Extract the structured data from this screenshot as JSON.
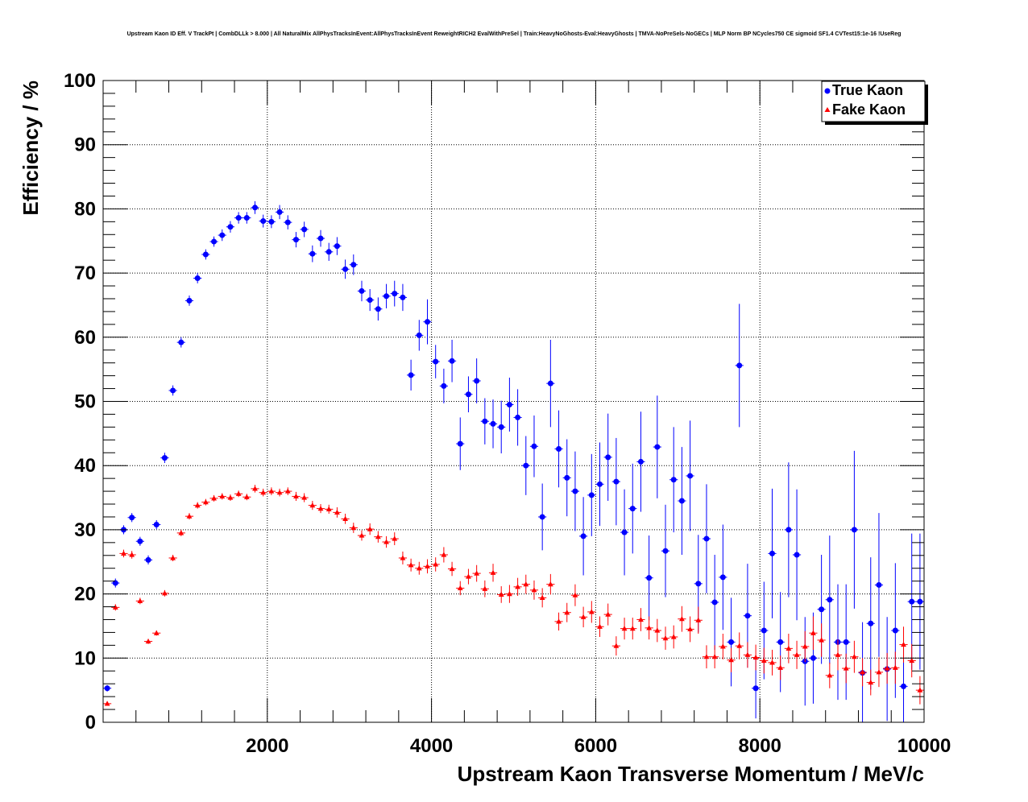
{
  "chart_data": {
    "type": "scatter",
    "title": "Upstream Kaon ID Eff. V TrackPt | CombDLLk > 8.000 | All NaturalMix AllPhysTracksInEvent:AllPhysTracksInEvent ReweightRICH2 EvalWithPreSel | Train:HeavyNoGhosts-Eval:HeavyGhosts | TMVA-NoPreSels-NoGECs | MLP Norm BP NCycles750 CE sigmoid SF1.4 CVTest15:1e-16 !UseReg",
    "xlabel": "Upstream Kaon Transverse Momentum / MeV/c",
    "ylabel": "Efficiency / %",
    "xlim": [
      0,
      10000
    ],
    "ylim": [
      0,
      100
    ],
    "x_tick_labels": [
      "2000",
      "4000",
      "6000",
      "8000",
      "10000"
    ],
    "y_tick_labels": [
      "0",
      "10",
      "20",
      "30",
      "40",
      "50",
      "60",
      "70",
      "80",
      "90",
      "100"
    ],
    "grid": true,
    "legend_position": "top-right",
    "series": [
      {
        "name": "True Kaon",
        "marker": "circle",
        "color": "#0000ff",
        "x": [
          50,
          150,
          250,
          350,
          450,
          550,
          650,
          750,
          850,
          950,
          1050,
          1150,
          1250,
          1350,
          1450,
          1550,
          1650,
          1750,
          1850,
          1950,
          2050,
          2150,
          2250,
          2350,
          2450,
          2550,
          2650,
          2750,
          2850,
          2950,
          3050,
          3150,
          3250,
          3350,
          3450,
          3550,
          3650,
          3750,
          3850,
          3950,
          4050,
          4150,
          4250,
          4350,
          4450,
          4550,
          4650,
          4750,
          4850,
          4950,
          5050,
          5150,
          5250,
          5350,
          5450,
          5550,
          5650,
          5750,
          5850,
          5950,
          6050,
          6150,
          6250,
          6350,
          6450,
          6550,
          6650,
          6750,
          6850,
          6950,
          7050,
          7150,
          7250,
          7350,
          7450,
          7550,
          7650,
          7750,
          7850,
          7950,
          8050,
          8150,
          8250,
          8350,
          8450,
          8550,
          8650,
          8750,
          8850,
          8950,
          9050,
          9150,
          9250,
          9350,
          9450,
          9550,
          9650,
          9750,
          9850,
          9950
        ],
        "y": [
          5.3,
          21.7,
          30.0,
          31.9,
          28.2,
          25.3,
          30.8,
          41.2,
          51.7,
          59.2,
          65.7,
          69.2,
          72.9,
          74.9,
          75.9,
          77.2,
          78.6,
          78.6,
          80.2,
          78.1,
          78.0,
          79.5,
          77.9,
          75.2,
          76.8,
          73.0,
          75.4,
          73.3,
          74.2,
          70.6,
          71.3,
          67.2,
          65.8,
          64.4,
          66.4,
          66.8,
          66.2,
          54.1,
          60.3,
          62.4,
          56.2,
          52.4,
          56.3,
          43.4,
          51.1,
          53.2,
          46.9,
          46.5,
          46.0,
          49.5,
          47.5,
          40.0,
          43.0,
          32.0,
          52.8,
          42.6,
          38.1,
          36.0,
          29.0,
          35.4,
          37.1,
          41.3,
          37.5,
          29.6,
          33.3,
          40.6,
          22.5,
          42.9,
          26.7,
          37.8,
          34.5,
          38.4,
          21.6,
          28.6,
          18.7,
          22.6,
          12.5,
          55.6,
          16.6,
          5.3,
          14.3,
          26.3,
          12.5,
          30.0,
          26.1,
          9.5,
          10.0,
          17.6,
          19.1,
          12.5,
          12.5,
          30.0,
          7.7,
          15.4,
          21.4,
          8.3,
          14.3,
          5.6,
          18.8,
          18.8
        ],
        "y_err": [
          0.5,
          0.7,
          0.7,
          0.7,
          0.7,
          0.7,
          0.7,
          0.8,
          0.8,
          0.8,
          0.8,
          0.8,
          0.8,
          0.8,
          0.9,
          0.9,
          0.9,
          0.9,
          1.0,
          1.0,
          1.0,
          1.1,
          1.1,
          1.2,
          1.2,
          1.3,
          1.3,
          1.4,
          1.4,
          1.5,
          1.6,
          1.6,
          1.7,
          1.8,
          1.9,
          2.0,
          2.1,
          2.4,
          2.4,
          3.5,
          2.6,
          2.7,
          3.3,
          4.1,
          2.8,
          3.5,
          3.6,
          3.8,
          4.1,
          4.2,
          4.4,
          4.6,
          4.8,
          5.2,
          6.8,
          6.0,
          6.0,
          6.2,
          6.1,
          6.4,
          6.5,
          6.8,
          6.8,
          6.7,
          7.0,
          7.8,
          6.6,
          8.0,
          7.2,
          8.2,
          8.4,
          8.6,
          7.6,
          8.5,
          7.4,
          8.2,
          6.9,
          9.6,
          8.1,
          4.7,
          7.6,
          10.1,
          7.8,
          10.5,
          10.2,
          6.9,
          7.1,
          8.5,
          10.0,
          9.0,
          9.0,
          12.3,
          7.9,
          10.3,
          11.2,
          8.1,
          10.5,
          6.9,
          10.6,
          10.6
        ]
      },
      {
        "name": "Fake Kaon",
        "marker": "triangle",
        "color": "#ff0000",
        "x": [
          50,
          150,
          250,
          350,
          450,
          550,
          650,
          750,
          850,
          950,
          1050,
          1150,
          1250,
          1350,
          1450,
          1550,
          1650,
          1750,
          1850,
          1950,
          2050,
          2150,
          2250,
          2350,
          2450,
          2550,
          2650,
          2750,
          2850,
          2950,
          3050,
          3150,
          3250,
          3350,
          3450,
          3550,
          3650,
          3750,
          3850,
          3950,
          4050,
          4150,
          4250,
          4350,
          4450,
          4550,
          4650,
          4750,
          4850,
          4950,
          5050,
          5150,
          5250,
          5350,
          5450,
          5550,
          5650,
          5750,
          5850,
          5950,
          6050,
          6150,
          6250,
          6350,
          6450,
          6550,
          6650,
          6750,
          6850,
          6950,
          7050,
          7150,
          7250,
          7350,
          7450,
          7550,
          7650,
          7750,
          7850,
          7950,
          8050,
          8150,
          8250,
          8350,
          8450,
          8550,
          8650,
          8750,
          8850,
          8950,
          9050,
          9150,
          9250,
          9350,
          9450,
          9550,
          9650,
          9750,
          9850,
          9950
        ],
        "y": [
          2.9,
          17.9,
          26.3,
          26.1,
          18.9,
          12.6,
          13.9,
          20.1,
          25.6,
          29.5,
          32.1,
          33.8,
          34.3,
          34.9,
          35.2,
          35.0,
          35.6,
          35.1,
          36.4,
          35.8,
          36.0,
          35.8,
          36.0,
          35.2,
          35.0,
          33.8,
          33.3,
          33.2,
          32.7,
          31.7,
          30.3,
          29.1,
          30.1,
          28.9,
          28.1,
          28.6,
          25.6,
          24.5,
          24.0,
          24.3,
          24.6,
          26.1,
          23.9,
          20.9,
          22.7,
          23.2,
          20.8,
          23.3,
          19.9,
          20.0,
          21.1,
          21.5,
          20.6,
          19.4,
          21.5,
          15.7,
          17.1,
          19.8,
          16.4,
          17.2,
          14.9,
          16.8,
          11.9,
          14.6,
          14.6,
          16.0,
          14.7,
          14.3,
          13.1,
          13.3,
          16.1,
          14.5,
          15.9,
          10.2,
          10.2,
          11.8,
          9.7,
          11.9,
          10.5,
          10.1,
          9.6,
          9.3,
          8.5,
          11.5,
          10.5,
          11.8,
          13.9,
          12.8,
          7.3,
          10.5,
          8.4,
          10.2,
          7.8,
          6.2,
          7.8,
          8.4,
          8.5,
          12.1,
          9.6,
          5.0
        ],
        "y_err": [
          0.3,
          0.5,
          0.6,
          0.6,
          0.5,
          0.4,
          0.4,
          0.5,
          0.5,
          0.5,
          0.5,
          0.5,
          0.5,
          0.5,
          0.5,
          0.5,
          0.5,
          0.5,
          0.6,
          0.6,
          0.6,
          0.6,
          0.6,
          0.7,
          0.7,
          0.7,
          0.7,
          0.7,
          0.8,
          0.8,
          0.8,
          0.8,
          0.9,
          0.9,
          0.9,
          1.0,
          1.0,
          1.0,
          1.0,
          1.1,
          1.1,
          1.2,
          1.1,
          1.1,
          1.2,
          1.3,
          1.3,
          1.4,
          1.3,
          1.4,
          1.4,
          1.5,
          1.5,
          1.5,
          1.6,
          1.4,
          1.5,
          1.7,
          1.6,
          1.7,
          1.6,
          1.7,
          1.5,
          1.7,
          1.7,
          1.8,
          1.8,
          1.8,
          1.8,
          1.8,
          2.0,
          2.0,
          2.1,
          1.8,
          1.8,
          2.0,
          1.9,
          2.1,
          2.0,
          2.0,
          2.0,
          2.0,
          1.9,
          2.3,
          2.2,
          2.4,
          2.6,
          2.6,
          2.0,
          2.4,
          2.3,
          2.5,
          2.2,
          2.0,
          2.3,
          2.4,
          2.5,
          2.8,
          2.6,
          2.2
        ]
      }
    ]
  }
}
